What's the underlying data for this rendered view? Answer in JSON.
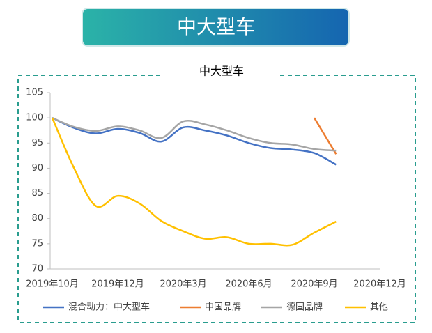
{
  "banner": "中大型车",
  "chart_data": {
    "type": "line",
    "title": "中大型车",
    "categories": [
      "2019年10月",
      null,
      null,
      "2019年12月",
      null,
      null,
      "2020年3月",
      null,
      null,
      "2020年6月",
      null,
      null,
      "2020年9月",
      null,
      null,
      "2020年12月"
    ],
    "series": [
      {
        "name": "混合动力：中大型车",
        "color": "#4472c4",
        "values": [
          100,
          98.0,
          96.9,
          97.8,
          97.0,
          95.3,
          98.1,
          97.5,
          96.5,
          95.0,
          94.0,
          93.7,
          93.0,
          90.7,
          null,
          null
        ]
      },
      {
        "name": "中国品牌",
        "color": "#ed7d31",
        "values": [
          null,
          null,
          null,
          null,
          null,
          null,
          null,
          null,
          null,
          null,
          null,
          null,
          100,
          92.8,
          null,
          null
        ]
      },
      {
        "name": "德国品牌",
        "color": "#a5a5a5",
        "values": [
          100,
          98.2,
          97.4,
          98.3,
          97.5,
          96.0,
          99.3,
          98.7,
          97.5,
          96.0,
          95.0,
          94.7,
          93.8,
          93.5,
          null,
          null
        ]
      },
      {
        "name": "其他",
        "color": "#ffc000",
        "values": [
          100,
          90.0,
          82.5,
          84.5,
          83.0,
          79.5,
          77.5,
          76.0,
          76.3,
          75.0,
          75.0,
          74.8,
          77.2,
          79.4,
          null,
          null
        ]
      }
    ],
    "ylim": [
      70,
      105
    ],
    "yticks": [
      70,
      75,
      80,
      85,
      90,
      95,
      100,
      105
    ],
    "grid": false
  }
}
